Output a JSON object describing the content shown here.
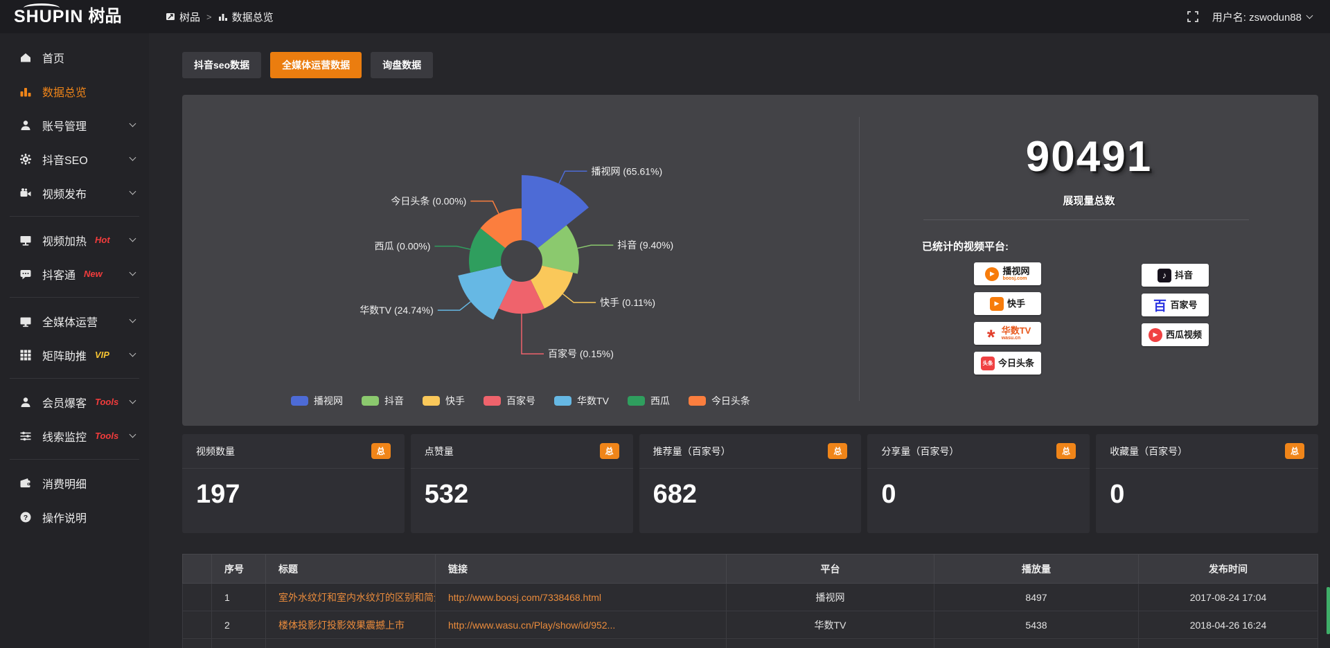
{
  "brand": {
    "logo_text": "SHUPIN",
    "logo_cn": "树品"
  },
  "topbar": {
    "breadcrumb": {
      "home": "树品",
      "separator": ">",
      "current": "数据总览"
    },
    "username": "用户名: zswodun88"
  },
  "sidebar": {
    "items": [
      {
        "label": "首页"
      },
      {
        "label": "数据总览",
        "active": true
      },
      {
        "label": "账号管理"
      },
      {
        "label": "抖音SEO"
      },
      {
        "label": "视频发布"
      },
      {
        "label": "视频加热",
        "badge": "Hot"
      },
      {
        "label": "抖客通",
        "badge": "New"
      },
      {
        "label": "全媒体运营"
      },
      {
        "label": "矩阵助推",
        "badge": "VIP"
      },
      {
        "label": "会员爆客",
        "badge": "Tools"
      },
      {
        "label": "线索监控",
        "badge": "Tools"
      },
      {
        "label": "消费明细"
      },
      {
        "label": "操作说明"
      }
    ]
  },
  "tabs": [
    {
      "label": "抖音seo数据"
    },
    {
      "label": "全媒体运营数据",
      "active": true
    },
    {
      "label": "询盘数据"
    }
  ],
  "chart_data": {
    "type": "pie",
    "subtype": "nightingale-rose",
    "unit": "%",
    "legend_position": "bottom",
    "series": [
      {
        "name": "播视网",
        "value": 65.61,
        "color": "#4d6bd6"
      },
      {
        "name": "抖音",
        "value": 9.4,
        "color": "#8bc96e"
      },
      {
        "name": "快手",
        "value": 0.11,
        "color": "#fac85a"
      },
      {
        "name": "百家号",
        "value": 0.15,
        "color": "#ef636c"
      },
      {
        "name": "华数TV",
        "value": 24.74,
        "color": "#66b8e4"
      },
      {
        "name": "西瓜",
        "value": 0.0,
        "color": "#2f9e5e"
      },
      {
        "name": "今日头条",
        "value": 0.0,
        "color": "#fb7e3e"
      }
    ]
  },
  "stats": {
    "total_value": "90491",
    "total_label": "展现量总数",
    "platforms_title": "已统计的视频平台:",
    "platforms": [
      {
        "name": "播视网",
        "sub": "boosj.com"
      },
      {
        "name": "抖音",
        "sub": ""
      },
      {
        "name": "快手",
        "sub": ""
      },
      {
        "name": "百家号",
        "sub": ""
      },
      {
        "name": "华数TV",
        "sub": "wasu.cn"
      },
      {
        "name": "西瓜视频",
        "sub": ""
      },
      {
        "name": "今日头条",
        "sub": ""
      },
      {
        "toutiao_logo_text": "头条"
      }
    ]
  },
  "cards": [
    {
      "label": "视频数量",
      "badge": "总",
      "value": "197"
    },
    {
      "label": "点赞量",
      "badge": "总",
      "value": "532"
    },
    {
      "label": "推荐量（百家号）",
      "badge": "总",
      "value": "682"
    },
    {
      "label": "分享量（百家号）",
      "badge": "总",
      "value": "0"
    },
    {
      "label": "收藏量（百家号）",
      "badge": "总",
      "value": "0"
    }
  ],
  "table": {
    "headers": [
      "序号",
      "标题",
      "链接",
      "平台",
      "播放量",
      "发布时间"
    ],
    "rows": [
      {
        "num": "1",
        "title": "室外水纹灯和室内水纹灯的区别和简介",
        "link": "http://www.boosj.com/7338468.html",
        "platform": "播视网",
        "views": "8497",
        "time": "2017-08-24 17:04"
      },
      {
        "num": "2",
        "title": "楼体投影灯投影效果震撼上市",
        "link": "http://www.wasu.cn/Play/show/id/952...",
        "platform": "华数TV",
        "views": "5438",
        "time": "2018-04-26 16:24"
      }
    ]
  },
  "colors": {
    "accent": "#eb7d0f",
    "badge": "#f08519",
    "link": "#eb8c3c",
    "hot_new_tools": "#f23c3c",
    "vip": "#f5c332",
    "panel_bg": "#434347"
  }
}
